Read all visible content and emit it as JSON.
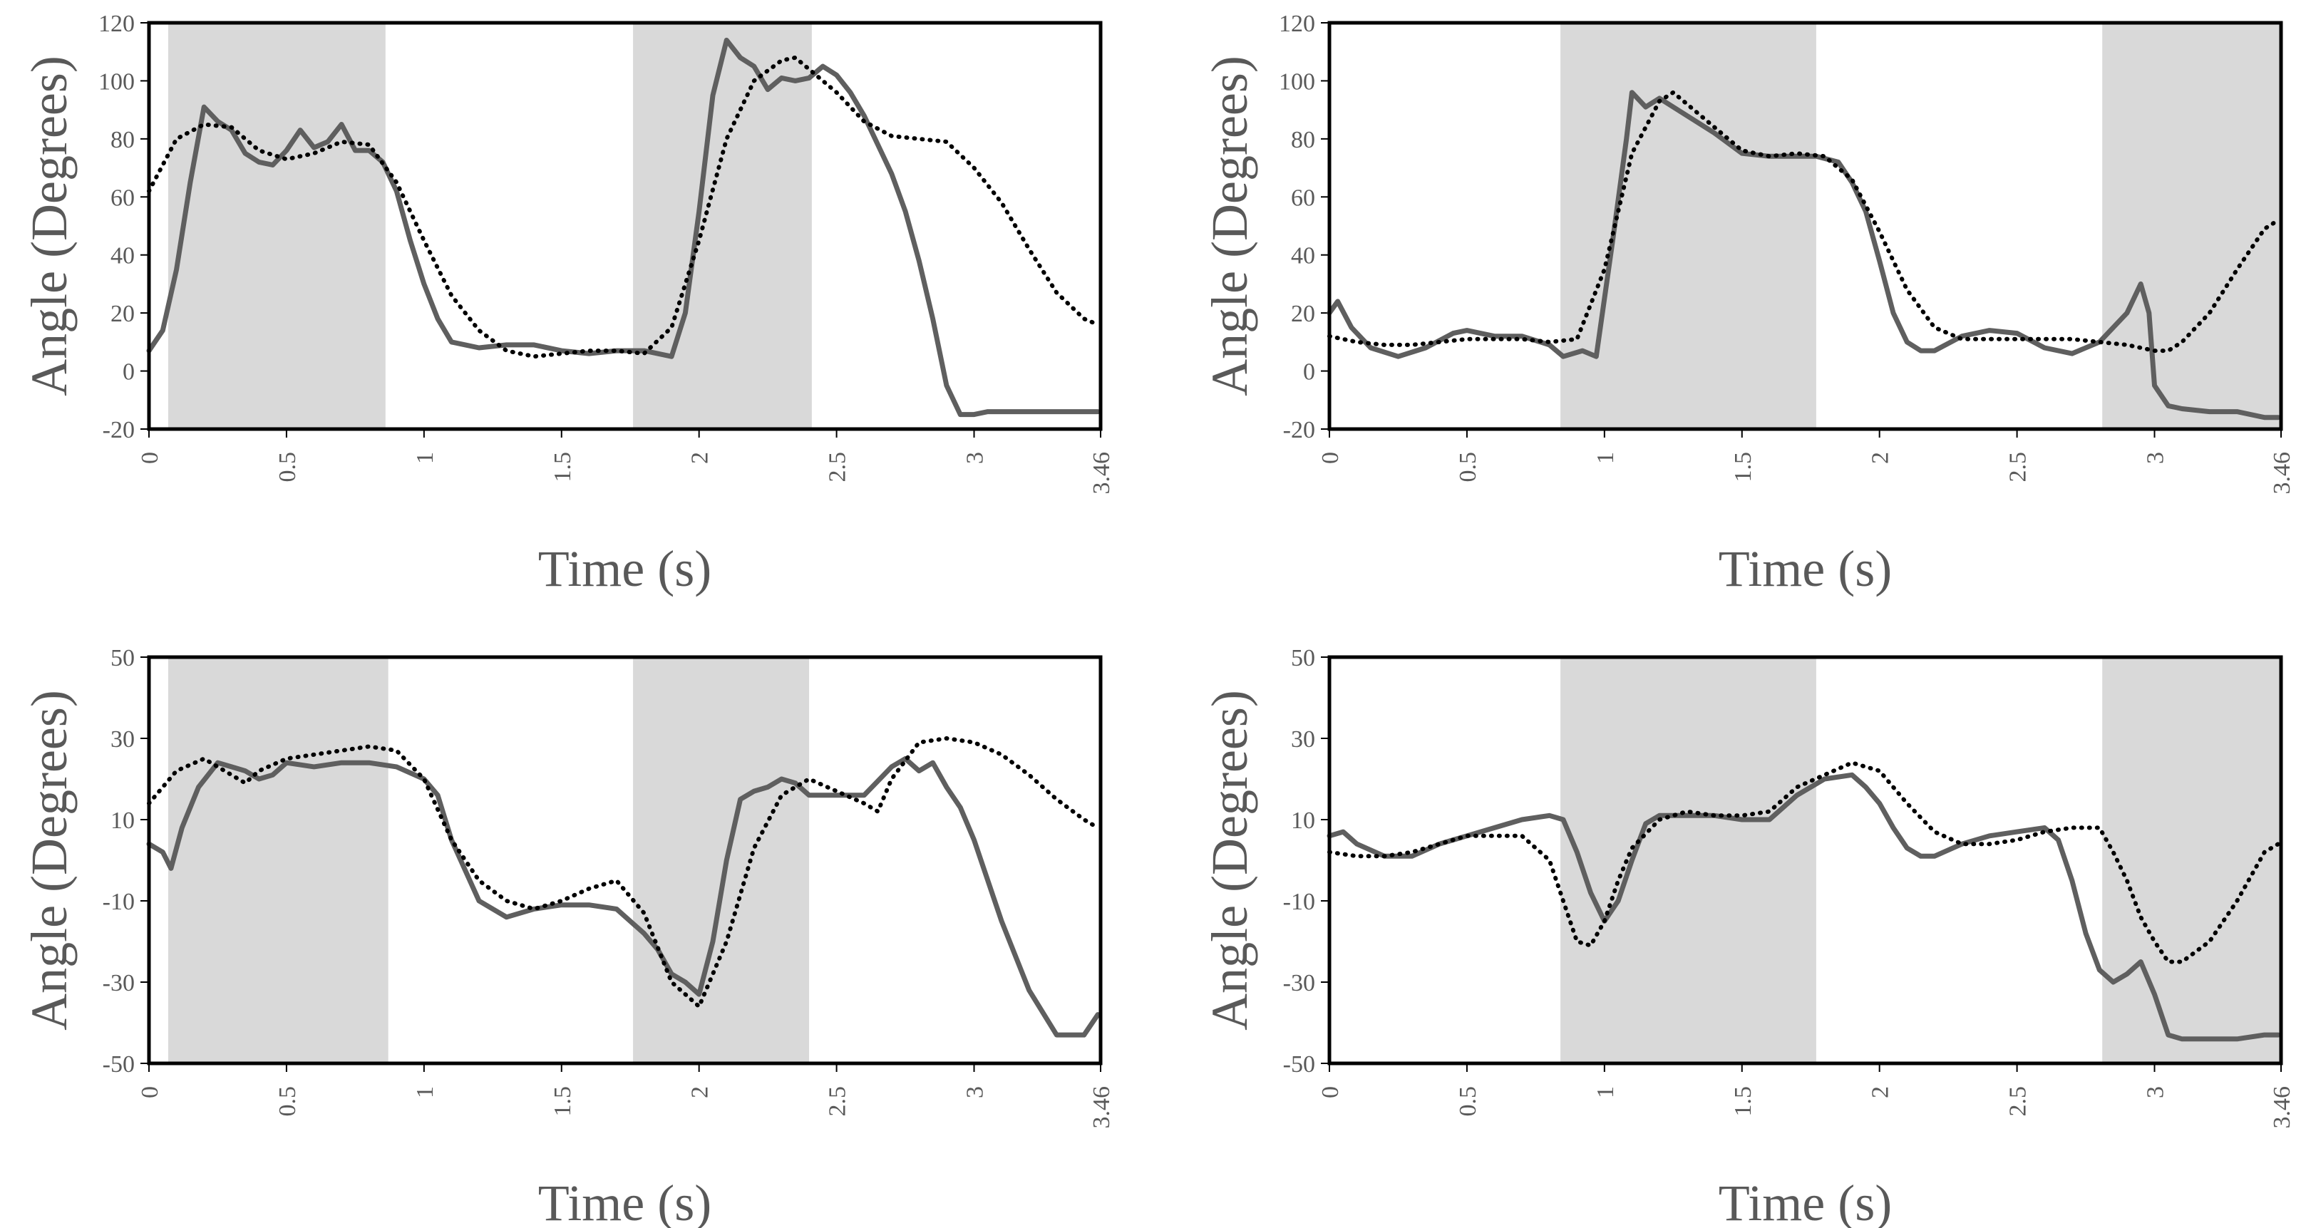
{
  "chart_data": [
    {
      "type": "line",
      "xlabel": "Time (s)",
      "ylabel": "Angle (Degrees)",
      "xlim": [
        0,
        3.46
      ],
      "ylim": [
        -20,
        120
      ],
      "xticks": [
        "0",
        "0.5",
        "1",
        "1.5",
        "2",
        "2.5",
        "3",
        "3.46"
      ],
      "yticks": [
        "-20",
        "0",
        "20",
        "40",
        "60",
        "80",
        "100",
        "120"
      ],
      "shaded_regions": [
        [
          0.07,
          0.86
        ],
        [
          1.76,
          2.41
        ]
      ],
      "series": [
        {
          "name": "solid",
          "style": "solid",
          "x": [
            0,
            0.05,
            0.1,
            0.15,
            0.2,
            0.25,
            0.3,
            0.35,
            0.4,
            0.45,
            0.5,
            0.55,
            0.6,
            0.65,
            0.7,
            0.75,
            0.8,
            0.85,
            0.9,
            0.95,
            1.0,
            1.05,
            1.1,
            1.15,
            1.2,
            1.3,
            1.4,
            1.5,
            1.6,
            1.7,
            1.8,
            1.9,
            1.95,
            2.0,
            2.05,
            2.1,
            2.15,
            2.2,
            2.25,
            2.3,
            2.35,
            2.4,
            2.45,
            2.5,
            2.55,
            2.6,
            2.65,
            2.7,
            2.75,
            2.8,
            2.85,
            2.9,
            2.95,
            3.0,
            3.05,
            3.1,
            3.15,
            3.2,
            3.25,
            3.3,
            3.35,
            3.4,
            3.45
          ],
          "y": [
            7,
            14,
            35,
            65,
            91,
            86,
            83,
            75,
            72,
            71,
            76,
            83,
            77,
            79,
            85,
            76,
            76,
            72,
            62,
            45,
            30,
            18,
            10,
            9,
            8,
            9,
            9,
            7,
            6,
            7,
            7,
            5,
            20,
            55,
            95,
            114,
            108,
            105,
            97,
            101,
            100,
            101,
            105,
            102,
            96,
            88,
            78,
            68,
            55,
            38,
            18,
            -5,
            -15,
            -15,
            -14,
            -14,
            -14,
            -14,
            -14,
            -14,
            -14,
            -14,
            -14
          ]
        },
        {
          "name": "dotted",
          "style": "dotted",
          "x": [
            0,
            0.1,
            0.2,
            0.3,
            0.4,
            0.5,
            0.6,
            0.7,
            0.8,
            0.9,
            1.0,
            1.1,
            1.2,
            1.3,
            1.4,
            1.5,
            1.6,
            1.7,
            1.8,
            1.9,
            2.0,
            2.1,
            2.2,
            2.3,
            2.35,
            2.4,
            2.5,
            2.6,
            2.7,
            2.8,
            2.9,
            3.0,
            3.1,
            3.2,
            3.3,
            3.4,
            3.45
          ],
          "y": [
            62,
            80,
            85,
            84,
            76,
            73,
            75,
            79,
            78,
            65,
            45,
            26,
            14,
            7,
            5,
            6,
            7,
            7,
            6,
            15,
            45,
            80,
            100,
            107,
            108,
            104,
            96,
            86,
            81,
            80,
            79,
            70,
            58,
            42,
            27,
            18,
            16
          ]
        }
      ]
    },
    {
      "type": "line",
      "xlabel": "Time (s)",
      "ylabel": "Angle (Degrees)",
      "xlim": [
        0,
        3.46
      ],
      "ylim": [
        -20,
        120
      ],
      "xticks": [
        "0",
        "0.5",
        "1",
        "1.5",
        "2",
        "2.5",
        "3",
        "3.46"
      ],
      "yticks": [
        "-20",
        "0",
        "20",
        "40",
        "60",
        "80",
        "100",
        "120"
      ],
      "shaded_regions": [
        [
          0.84,
          1.77
        ],
        [
          2.81,
          3.46
        ]
      ],
      "series": [
        {
          "name": "solid",
          "style": "solid",
          "x": [
            0,
            0.03,
            0.08,
            0.15,
            0.25,
            0.35,
            0.45,
            0.5,
            0.6,
            0.7,
            0.8,
            0.85,
            0.92,
            0.97,
            1.03,
            1.08,
            1.1,
            1.15,
            1.2,
            1.3,
            1.4,
            1.5,
            1.6,
            1.7,
            1.77,
            1.85,
            1.9,
            1.95,
            2.0,
            2.05,
            2.1,
            2.15,
            2.2,
            2.3,
            2.4,
            2.5,
            2.6,
            2.7,
            2.8,
            2.9,
            2.95,
            2.98,
            3.0,
            3.05,
            3.1,
            3.2,
            3.3,
            3.4,
            3.45
          ],
          "y": [
            20,
            24,
            15,
            8,
            5,
            8,
            13,
            14,
            12,
            12,
            9,
            5,
            7,
            5,
            45,
            80,
            96,
            91,
            94,
            88,
            82,
            75,
            74,
            74,
            74,
            72,
            65,
            55,
            38,
            20,
            10,
            7,
            7,
            12,
            14,
            13,
            8,
            6,
            10,
            20,
            30,
            20,
            -5,
            -12,
            -13,
            -14,
            -14,
            -16,
            -16
          ]
        },
        {
          "name": "dotted",
          "style": "dotted",
          "x": [
            0,
            0.1,
            0.2,
            0.3,
            0.4,
            0.5,
            0.6,
            0.7,
            0.8,
            0.9,
            1.0,
            1.1,
            1.2,
            1.25,
            1.3,
            1.4,
            1.5,
            1.6,
            1.7,
            1.8,
            1.9,
            2.0,
            2.1,
            2.2,
            2.3,
            2.4,
            2.5,
            2.6,
            2.7,
            2.8,
            2.9,
            3.0,
            3.05,
            3.1,
            3.2,
            3.3,
            3.4,
            3.45
          ],
          "y": [
            12,
            10,
            9,
            9,
            10,
            11,
            11,
            11,
            10,
            11,
            35,
            75,
            93,
            96,
            92,
            84,
            76,
            74,
            75,
            74,
            66,
            48,
            28,
            15,
            11,
            11,
            11,
            11,
            11,
            10,
            9,
            7,
            7,
            10,
            20,
            35,
            49,
            52
          ]
        }
      ]
    },
    {
      "type": "line",
      "xlabel": "Time (s)",
      "ylabel": "Angle (Degrees)",
      "xlim": [
        0,
        3.46
      ],
      "ylim": [
        -50,
        50
      ],
      "xticks": [
        "0",
        "0.5",
        "1",
        "1.5",
        "2",
        "2.5",
        "3",
        "3.46"
      ],
      "yticks": [
        "-50",
        "-30",
        "-10",
        "10",
        "30",
        "50"
      ],
      "shaded_regions": [
        [
          0.07,
          0.87
        ],
        [
          1.76,
          2.4
        ]
      ],
      "series": [
        {
          "name": "solid",
          "style": "solid",
          "x": [
            0,
            0.05,
            0.08,
            0.12,
            0.18,
            0.25,
            0.3,
            0.35,
            0.4,
            0.45,
            0.5,
            0.6,
            0.7,
            0.8,
            0.9,
            1.0,
            1.05,
            1.1,
            1.2,
            1.3,
            1.4,
            1.5,
            1.6,
            1.7,
            1.8,
            1.85,
            1.9,
            1.95,
            2.0,
            2.05,
            2.1,
            2.15,
            2.2,
            2.25,
            2.3,
            2.35,
            2.4,
            2.5,
            2.6,
            2.7,
            2.75,
            2.8,
            2.85,
            2.9,
            2.95,
            3.0,
            3.1,
            3.2,
            3.3,
            3.4,
            3.45
          ],
          "y": [
            4,
            2,
            -2,
            8,
            18,
            24,
            23,
            22,
            20,
            21,
            24,
            23,
            24,
            24,
            23,
            20,
            16,
            5,
            -10,
            -14,
            -12,
            -11,
            -11,
            -12,
            -18,
            -22,
            -28,
            -30,
            -33,
            -20,
            0,
            15,
            17,
            18,
            20,
            19,
            16,
            16,
            16,
            23,
            25,
            22,
            24,
            18,
            13,
            5,
            -15,
            -32,
            -43,
            -43,
            -38
          ]
        },
        {
          "name": "dotted",
          "style": "dotted",
          "x": [
            0,
            0.1,
            0.2,
            0.3,
            0.35,
            0.4,
            0.5,
            0.6,
            0.7,
            0.8,
            0.9,
            1.0,
            1.1,
            1.2,
            1.3,
            1.4,
            1.5,
            1.6,
            1.7,
            1.8,
            1.9,
            2.0,
            2.1,
            2.2,
            2.3,
            2.4,
            2.5,
            2.6,
            2.65,
            2.7,
            2.8,
            2.9,
            3.0,
            3.1,
            3.2,
            3.3,
            3.4,
            3.45
          ],
          "y": [
            14,
            22,
            25,
            21,
            19,
            22,
            25,
            26,
            27,
            28,
            27,
            20,
            5,
            -5,
            -10,
            -12,
            -10,
            -7,
            -5,
            -13,
            -30,
            -36,
            -20,
            3,
            16,
            20,
            17,
            14,
            12,
            20,
            29,
            30,
            29,
            26,
            21,
            15,
            10,
            8
          ]
        }
      ]
    },
    {
      "type": "line",
      "xlabel": "Time (s)",
      "ylabel": "Angle (Degrees)",
      "xlim": [
        0,
        3.46
      ],
      "ylim": [
        -50,
        50
      ],
      "xticks": [
        "0",
        "0.5",
        "1",
        "1.5",
        "2",
        "2.5",
        "3",
        "3.46"
      ],
      "yticks": [
        "-50",
        "-30",
        "-10",
        "10",
        "30",
        "50"
      ],
      "shaded_regions": [
        [
          0.84,
          1.77
        ],
        [
          2.81,
          3.46
        ]
      ],
      "series": [
        {
          "name": "solid",
          "style": "solid",
          "x": [
            0,
            0.05,
            0.1,
            0.2,
            0.3,
            0.4,
            0.5,
            0.6,
            0.7,
            0.8,
            0.85,
            0.9,
            0.95,
            1.0,
            1.05,
            1.1,
            1.15,
            1.2,
            1.3,
            1.4,
            1.5,
            1.6,
            1.7,
            1.8,
            1.9,
            1.95,
            2.0,
            2.05,
            2.1,
            2.15,
            2.2,
            2.3,
            2.4,
            2.5,
            2.6,
            2.65,
            2.7,
            2.75,
            2.8,
            2.85,
            2.9,
            2.95,
            3.0,
            3.05,
            3.1,
            3.2,
            3.3,
            3.4,
            3.45
          ],
          "y": [
            6,
            7,
            4,
            1,
            1,
            4,
            6,
            8,
            10,
            11,
            10,
            2,
            -8,
            -15,
            -10,
            0,
            9,
            11,
            11,
            11,
            10,
            10,
            16,
            20,
            21,
            18,
            14,
            8,
            3,
            1,
            1,
            4,
            6,
            7,
            8,
            5,
            -5,
            -18,
            -27,
            -30,
            -28,
            -25,
            -33,
            -43,
            -44,
            -44,
            -44,
            -43,
            -43
          ]
        },
        {
          "name": "dotted",
          "style": "dotted",
          "x": [
            0,
            0.1,
            0.2,
            0.3,
            0.4,
            0.5,
            0.6,
            0.7,
            0.8,
            0.85,
            0.9,
            0.95,
            1.0,
            1.05,
            1.1,
            1.2,
            1.3,
            1.4,
            1.5,
            1.6,
            1.7,
            1.8,
            1.9,
            2.0,
            2.1,
            2.2,
            2.3,
            2.4,
            2.5,
            2.6,
            2.7,
            2.8,
            2.85,
            2.9,
            2.95,
            3.0,
            3.05,
            3.1,
            3.2,
            3.3,
            3.4,
            3.45
          ],
          "y": [
            2,
            1,
            1,
            2,
            4,
            6,
            6,
            6,
            0,
            -10,
            -20,
            -21,
            -15,
            -5,
            3,
            10,
            12,
            11,
            11,
            12,
            18,
            21,
            24,
            22,
            14,
            7,
            4,
            4,
            5,
            7,
            8,
            8,
            2,
            -5,
            -14,
            -20,
            -25,
            -25,
            -20,
            -10,
            2,
            4
          ]
        }
      ]
    }
  ]
}
